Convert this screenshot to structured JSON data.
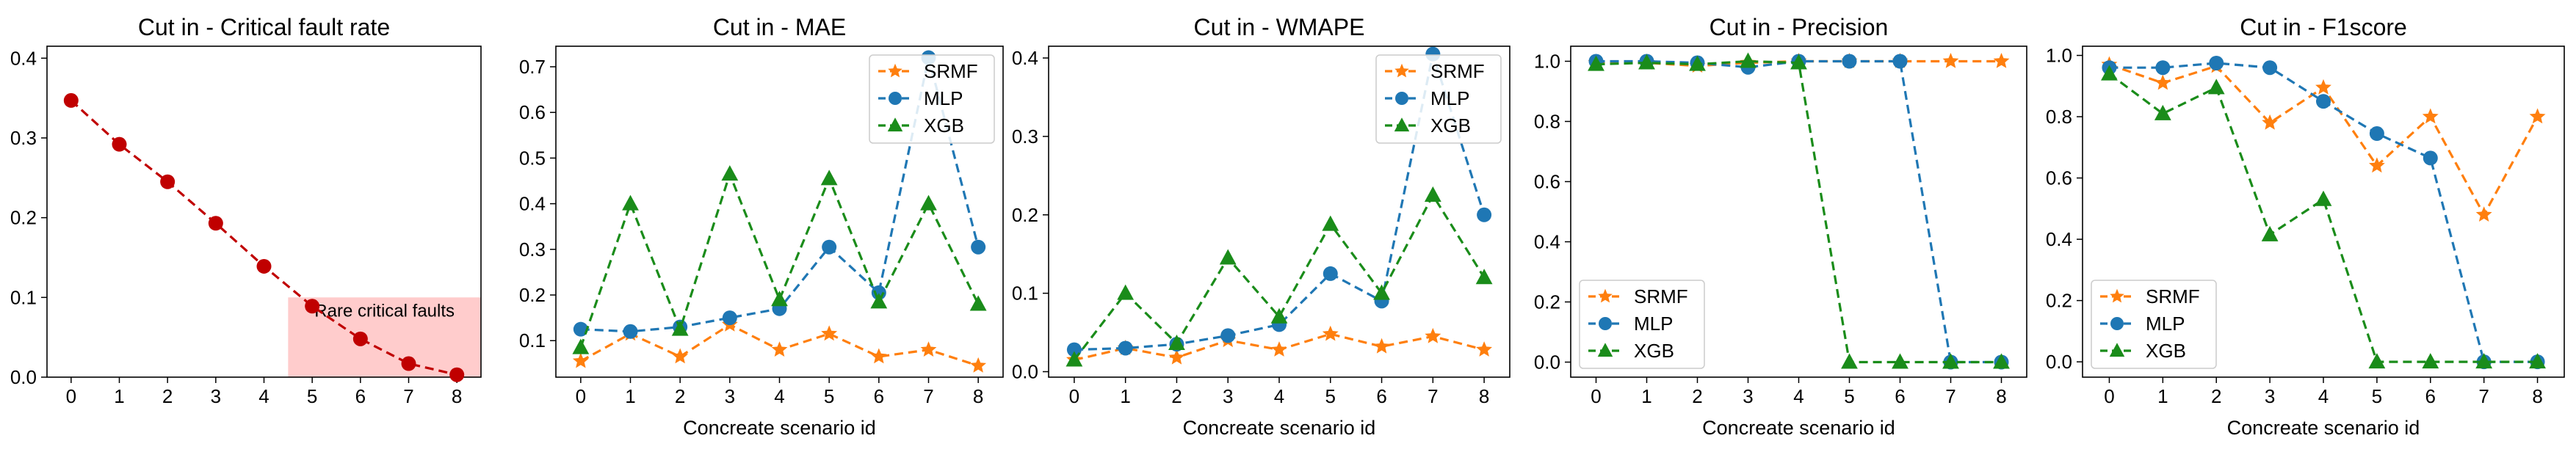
{
  "chart_data": [
    {
      "type": "line",
      "title": "Cut in - Critical fault rate",
      "xlabel": "",
      "ylabel": "",
      "x": [
        0,
        1,
        2,
        3,
        4,
        5,
        6,
        7,
        8
      ],
      "xlim": [
        -0.5,
        8.5
      ],
      "ylim": [
        0,
        0.415
      ],
      "yticks": [
        0.0,
        0.1,
        0.2,
        0.3,
        0.4
      ],
      "ytick_labels": [
        "0.0",
        "0.1",
        "0.2",
        "0.3",
        "0.4"
      ],
      "grid": false,
      "legend": null,
      "series": [
        {
          "values": [
            0.347,
            0.292,
            0.245,
            0.193,
            0.139,
            0.089,
            0.048,
            0.017,
            0.003
          ],
          "color": "#c00000",
          "marker": "circle",
          "linestyle": "dashed"
        }
      ],
      "annotations": [
        {
          "text": "Rare critical faults",
          "x0": 4.5,
          "x1": 8.5,
          "y0": 0.0,
          "y1": 0.1,
          "color": "#ffcccc"
        }
      ]
    },
    {
      "type": "line",
      "title": "Cut in - MAE",
      "xlabel": "Concreate scenario id",
      "ylabel": "",
      "x": [
        0,
        1,
        2,
        3,
        4,
        5,
        6,
        7,
        8
      ],
      "xlim": [
        -0.5,
        8.5
      ],
      "ylim": [
        0.02,
        0.745
      ],
      "yticks": [
        0.1,
        0.2,
        0.3,
        0.4,
        0.5,
        0.6,
        0.7
      ],
      "ytick_labels": [
        "0.1",
        "0.2",
        "0.3",
        "0.4",
        "0.5",
        "0.6",
        "0.7"
      ],
      "grid": false,
      "legend": "top-right",
      "series": [
        {
          "name": "SRMF",
          "values": [
            0.055,
            0.115,
            0.065,
            0.135,
            0.08,
            0.115,
            0.065,
            0.08,
            0.045
          ],
          "color": "#ff7f0e",
          "marker": "star",
          "linestyle": "dashed"
        },
        {
          "name": "MLP",
          "values": [
            0.125,
            0.12,
            0.13,
            0.15,
            0.17,
            0.305,
            0.205,
            0.72,
            0.305
          ],
          "color": "#1f77b4",
          "marker": "circle",
          "linestyle": "dashed"
        },
        {
          "name": "XGB",
          "values": [
            0.085,
            0.4,
            0.125,
            0.465,
            0.19,
            0.455,
            0.185,
            0.4,
            0.18
          ],
          "color": "#1a8c1a",
          "marker": "triangle",
          "linestyle": "dashed"
        }
      ]
    },
    {
      "type": "line",
      "title": "Cut in - WMAPE",
      "xlabel": "Concreate scenario id",
      "ylabel": "",
      "x": [
        0,
        1,
        2,
        3,
        4,
        5,
        6,
        7,
        8
      ],
      "xlim": [
        -0.5,
        8.5
      ],
      "ylim": [
        -0.007,
        0.415
      ],
      "yticks": [
        0.0,
        0.1,
        0.2,
        0.3,
        0.4
      ],
      "ytick_labels": [
        "0.0",
        "0.1",
        "0.2",
        "0.3",
        "0.4"
      ],
      "grid": false,
      "legend": "top-right",
      "series": [
        {
          "name": "SRMF",
          "values": [
            0.015,
            0.03,
            0.018,
            0.04,
            0.028,
            0.048,
            0.032,
            0.045,
            0.028
          ],
          "color": "#ff7f0e",
          "marker": "star",
          "linestyle": "dashed"
        },
        {
          "name": "MLP",
          "values": [
            0.028,
            0.03,
            0.035,
            0.046,
            0.06,
            0.125,
            0.09,
            0.405,
            0.2
          ],
          "color": "#1f77b4",
          "marker": "circle",
          "linestyle": "dashed"
        },
        {
          "name": "XGB",
          "values": [
            0.015,
            0.1,
            0.036,
            0.145,
            0.07,
            0.188,
            0.1,
            0.225,
            0.12
          ],
          "color": "#1a8c1a",
          "marker": "triangle",
          "linestyle": "dashed"
        }
      ]
    },
    {
      "type": "line",
      "title": "Cut in - Precision",
      "xlabel": "Concreate scenario id",
      "ylabel": "",
      "x": [
        0,
        1,
        2,
        3,
        4,
        5,
        6,
        7,
        8
      ],
      "xlim": [
        -0.5,
        8.5
      ],
      "ylim": [
        -0.05,
        1.05
      ],
      "yticks": [
        0.0,
        0.2,
        0.4,
        0.6,
        0.8,
        1.0
      ],
      "ytick_labels": [
        "0.0",
        "0.2",
        "0.4",
        "0.6",
        "0.8",
        "1.0"
      ],
      "grid": false,
      "legend": "bottom-left",
      "series": [
        {
          "name": "SRMF",
          "values": [
            0.995,
            0.995,
            0.985,
            0.995,
            1.0,
            1.0,
            1.0,
            1.0,
            1.0
          ],
          "color": "#ff7f0e",
          "marker": "star",
          "linestyle": "dashed"
        },
        {
          "name": "MLP",
          "values": [
            1.0,
            1.0,
            0.995,
            0.98,
            1.0,
            1.0,
            1.0,
            0.0,
            0.0
          ],
          "color": "#1f77b4",
          "marker": "circle",
          "linestyle": "dashed"
        },
        {
          "name": "XGB",
          "values": [
            0.99,
            0.995,
            0.99,
            1.0,
            0.995,
            0.0,
            0.0,
            0.0,
            0.0
          ],
          "color": "#1a8c1a",
          "marker": "triangle",
          "linestyle": "dashed"
        }
      ]
    },
    {
      "type": "line",
      "title": "Cut in - F1score",
      "xlabel": "Concreate scenario id",
      "ylabel": "",
      "x": [
        0,
        1,
        2,
        3,
        4,
        5,
        6,
        7,
        8
      ],
      "xlim": [
        -0.5,
        8.5
      ],
      "ylim": [
        -0.05,
        1.03
      ],
      "yticks": [
        0.0,
        0.2,
        0.4,
        0.6,
        0.8,
        1.0
      ],
      "ytick_labels": [
        "0.0",
        "0.2",
        "0.4",
        "0.6",
        "0.8",
        "1.0"
      ],
      "grid": false,
      "legend": "bottom-left",
      "series": [
        {
          "name": "SRMF",
          "values": [
            0.97,
            0.91,
            0.965,
            0.78,
            0.895,
            0.64,
            0.8,
            0.48,
            0.8
          ],
          "color": "#ff7f0e",
          "marker": "star",
          "linestyle": "dashed"
        },
        {
          "name": "MLP",
          "values": [
            0.96,
            0.96,
            0.975,
            0.96,
            0.85,
            0.745,
            0.665,
            0.0,
            0.0
          ],
          "color": "#1f77b4",
          "marker": "circle",
          "linestyle": "dashed"
        },
        {
          "name": "XGB",
          "values": [
            0.94,
            0.81,
            0.895,
            0.415,
            0.53,
            0.0,
            0.0,
            0.0,
            0.0
          ],
          "color": "#1a8c1a",
          "marker": "triangle",
          "linestyle": "dashed"
        }
      ]
    }
  ]
}
